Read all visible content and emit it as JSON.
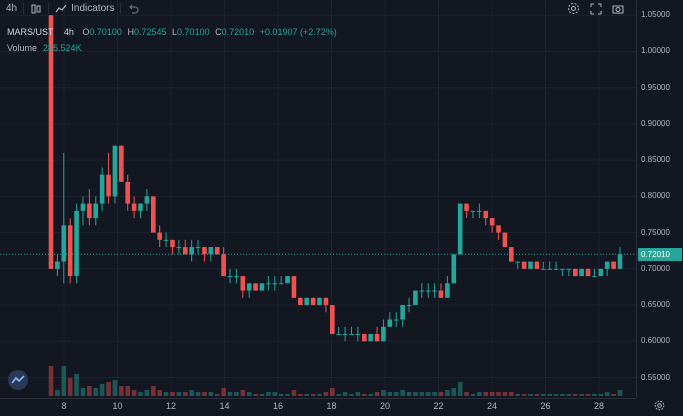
{
  "toolbar": {
    "interval": "4h",
    "indicators_label": "Indicators",
    "icons": [
      "candles-icon",
      "indicators-icon",
      "undo-icon",
      "settings-icon",
      "fullscreen-icon",
      "snapshot-icon"
    ]
  },
  "legend": {
    "symbol": "MARS/UST",
    "timeframe": "4h",
    "open_key": "O",
    "open": "0.70100",
    "high_key": "H",
    "high": "0.72545",
    "low_key": "L",
    "low": "0.70100",
    "close_key": "C",
    "close": "0.72010",
    "change": "+0.01907 (+2.72%)",
    "volume_label": "Volume",
    "volume_value": "285.524K"
  },
  "price_scale": {
    "labels": [
      "1.05000",
      "1.00000",
      "0.95000",
      "0.90000",
      "0.85000",
      "0.80000",
      "0.75000",
      "0.70000",
      "0.65000",
      "0.60000",
      "0.55000"
    ],
    "current_price": "0.72010"
  },
  "time_scale": {
    "labels": [
      "8",
      "10",
      "12",
      "14",
      "16",
      "18",
      "20",
      "22",
      "24",
      "26",
      "28"
    ]
  },
  "colors": {
    "background": "#131722",
    "up": "#26a69a",
    "down": "#ef5350",
    "grid": "#1e2230",
    "text": "#b2b5be"
  },
  "chart_data": {
    "type": "candlestick",
    "symbol": "MARS/UST",
    "interval": "4h",
    "ylim": [
      0.53,
      1.06
    ],
    "x_ticks": [
      "8",
      "10",
      "12",
      "14",
      "16",
      "18",
      "20",
      "22",
      "24",
      "26",
      "28"
    ],
    "candles": [
      [
        1.05,
        1.05,
        0.7,
        0.7
      ],
      [
        0.7,
        0.72,
        0.69,
        0.71
      ],
      [
        0.71,
        0.86,
        0.68,
        0.76
      ],
      [
        0.76,
        0.77,
        0.68,
        0.69
      ],
      [
        0.69,
        0.79,
        0.68,
        0.78
      ],
      [
        0.78,
        0.8,
        0.76,
        0.79
      ],
      [
        0.79,
        0.81,
        0.76,
        0.77
      ],
      [
        0.77,
        0.8,
        0.76,
        0.79
      ],
      [
        0.79,
        0.84,
        0.78,
        0.83
      ],
      [
        0.83,
        0.86,
        0.79,
        0.8
      ],
      [
        0.8,
        0.87,
        0.79,
        0.87
      ],
      [
        0.87,
        0.87,
        0.82,
        0.82
      ],
      [
        0.82,
        0.83,
        0.78,
        0.79
      ],
      [
        0.79,
        0.8,
        0.77,
        0.78
      ],
      [
        0.78,
        0.79,
        0.77,
        0.79
      ],
      [
        0.79,
        0.81,
        0.78,
        0.8
      ],
      [
        0.8,
        0.8,
        0.75,
        0.75
      ],
      [
        0.75,
        0.76,
        0.73,
        0.74
      ],
      [
        0.74,
        0.75,
        0.73,
        0.74
      ],
      [
        0.74,
        0.74,
        0.72,
        0.73
      ],
      [
        0.73,
        0.74,
        0.72,
        0.73
      ],
      [
        0.73,
        0.74,
        0.72,
        0.72
      ],
      [
        0.72,
        0.74,
        0.71,
        0.73
      ],
      [
        0.73,
        0.74,
        0.72,
        0.73
      ],
      [
        0.73,
        0.73,
        0.71,
        0.72
      ],
      [
        0.72,
        0.73,
        0.71,
        0.73
      ],
      [
        0.73,
        0.73,
        0.72,
        0.72
      ],
      [
        0.72,
        0.73,
        0.69,
        0.69
      ],
      [
        0.69,
        0.7,
        0.68,
        0.69
      ],
      [
        0.69,
        0.7,
        0.68,
        0.69
      ],
      [
        0.69,
        0.69,
        0.66,
        0.67
      ],
      [
        0.67,
        0.68,
        0.66,
        0.68
      ],
      [
        0.68,
        0.68,
        0.67,
        0.67
      ],
      [
        0.67,
        0.68,
        0.67,
        0.68
      ],
      [
        0.68,
        0.69,
        0.67,
        0.68
      ],
      [
        0.68,
        0.69,
        0.67,
        0.68
      ],
      [
        0.68,
        0.69,
        0.68,
        0.68
      ],
      [
        0.68,
        0.69,
        0.68,
        0.69
      ],
      [
        0.69,
        0.69,
        0.66,
        0.66
      ],
      [
        0.66,
        0.66,
        0.65,
        0.65
      ],
      [
        0.65,
        0.66,
        0.65,
        0.66
      ],
      [
        0.66,
        0.66,
        0.65,
        0.65
      ],
      [
        0.65,
        0.66,
        0.65,
        0.66
      ],
      [
        0.66,
        0.66,
        0.64,
        0.65
      ],
      [
        0.65,
        0.65,
        0.61,
        0.61
      ],
      [
        0.61,
        0.62,
        0.61,
        0.61
      ],
      [
        0.61,
        0.62,
        0.6,
        0.61
      ],
      [
        0.61,
        0.62,
        0.61,
        0.61
      ],
      [
        0.61,
        0.62,
        0.6,
        0.61
      ],
      [
        0.61,
        0.61,
        0.6,
        0.6
      ],
      [
        0.6,
        0.61,
        0.6,
        0.61
      ],
      [
        0.61,
        0.62,
        0.6,
        0.6
      ],
      [
        0.6,
        0.63,
        0.6,
        0.62
      ],
      [
        0.62,
        0.64,
        0.62,
        0.63
      ],
      [
        0.63,
        0.64,
        0.62,
        0.63
      ],
      [
        0.63,
        0.65,
        0.62,
        0.65
      ],
      [
        0.65,
        0.66,
        0.64,
        0.65
      ],
      [
        0.65,
        0.67,
        0.65,
        0.67
      ],
      [
        0.67,
        0.68,
        0.66,
        0.67
      ],
      [
        0.67,
        0.68,
        0.66,
        0.67
      ],
      [
        0.67,
        0.68,
        0.66,
        0.67
      ],
      [
        0.67,
        0.68,
        0.66,
        0.66
      ],
      [
        0.66,
        0.69,
        0.66,
        0.68
      ],
      [
        0.68,
        0.72,
        0.68,
        0.72
      ],
      [
        0.72,
        0.79,
        0.72,
        0.79
      ],
      [
        0.79,
        0.79,
        0.77,
        0.78
      ],
      [
        0.78,
        0.78,
        0.77,
        0.78
      ],
      [
        0.78,
        0.79,
        0.77,
        0.78
      ],
      [
        0.78,
        0.78,
        0.76,
        0.77
      ],
      [
        0.77,
        0.77,
        0.75,
        0.76
      ],
      [
        0.76,
        0.76,
        0.74,
        0.75
      ],
      [
        0.75,
        0.75,
        0.73,
        0.73
      ],
      [
        0.73,
        0.73,
        0.71,
        0.71
      ],
      [
        0.71,
        0.71,
        0.7,
        0.71
      ],
      [
        0.71,
        0.71,
        0.7,
        0.7
      ],
      [
        0.7,
        0.71,
        0.7,
        0.71
      ],
      [
        0.71,
        0.71,
        0.7,
        0.7
      ],
      [
        0.7,
        0.71,
        0.7,
        0.7
      ],
      [
        0.7,
        0.71,
        0.7,
        0.7
      ],
      [
        0.7,
        0.71,
        0.7,
        0.7
      ],
      [
        0.7,
        0.7,
        0.69,
        0.7
      ],
      [
        0.7,
        0.7,
        0.69,
        0.7
      ],
      [
        0.7,
        0.7,
        0.69,
        0.69
      ],
      [
        0.69,
        0.7,
        0.69,
        0.7
      ],
      [
        0.7,
        0.7,
        0.69,
        0.69
      ],
      [
        0.69,
        0.7,
        0.69,
        0.69
      ],
      [
        0.69,
        0.7,
        0.69,
        0.7
      ],
      [
        0.7,
        0.71,
        0.69,
        0.71
      ],
      [
        0.71,
        0.71,
        0.7,
        0.7
      ],
      [
        0.7,
        0.73,
        0.7,
        0.72
      ]
    ]
  }
}
